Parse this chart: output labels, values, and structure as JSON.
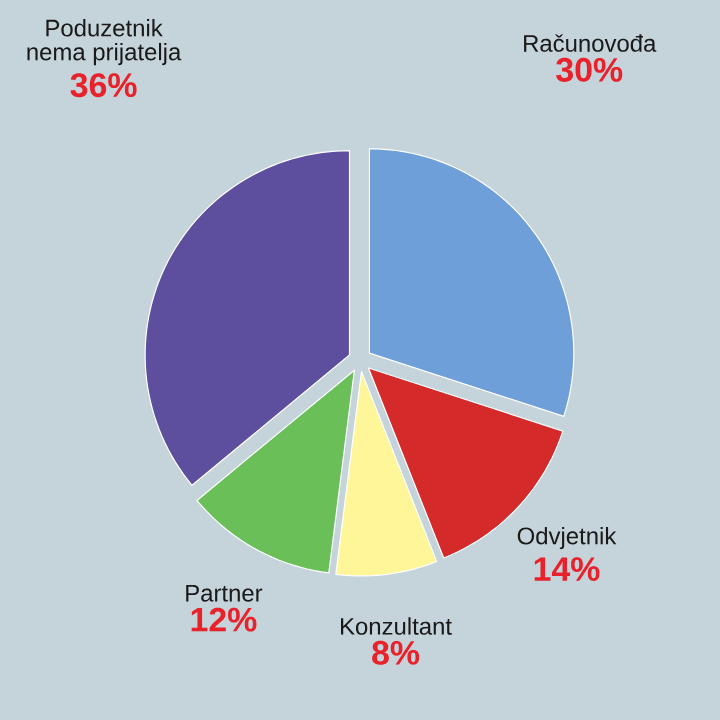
{
  "chart_data": {
    "type": "pie",
    "categories": [
      "Računovođa",
      "Odvjetnik",
      "Konzultant",
      "Partner",
      "Poduzetnik nema prijatelja"
    ],
    "values": [
      30,
      14,
      8,
      12,
      36
    ],
    "colors": [
      "#6f9fd8",
      "#d42a2a",
      "#fff599",
      "#6bbf59",
      "#5e4f9e"
    ],
    "value_labels": [
      "30%",
      "14%",
      "8%",
      "12%",
      "36%"
    ]
  }
}
